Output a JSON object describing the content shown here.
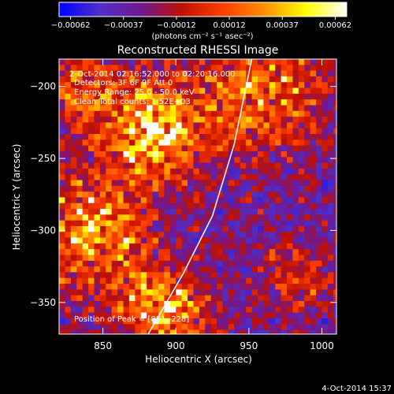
{
  "chart_data": {
    "type": "heatmap",
    "title": "Reconstructed RHESSI Image",
    "xlabel": "Heliocentric X (arcsec)",
    "ylabel": "Heliocentric Y (arcsec)",
    "xlim": [
      820,
      1010
    ],
    "ylim": [
      -372,
      -181
    ],
    "x_ticks": [
      850,
      900,
      950,
      1000
    ],
    "y_ticks": [
      -200,
      -250,
      -300,
      -350
    ],
    "x_tick_labels": [
      "850",
      "900",
      "950",
      "1000"
    ],
    "y_tick_labels": [
      "−200",
      "−250",
      "−300",
      "−350"
    ],
    "colorbar": {
      "min": -0.00062,
      "max": 0.00062,
      "tick_labels": [
        "−0.00062",
        "−0.00037",
        "−0.00012",
        "0.00012",
        "0.00037",
        "0.00062"
      ],
      "unit_label": "(photons cm⁻² s⁻¹ asec⁻²)",
      "colors": [
        "#0000ff",
        "#5030c8",
        "#701890",
        "#c01000",
        "#ff4000",
        "#ff9000",
        "#ffff00",
        "#ffffff"
      ]
    },
    "annotations": [
      "2-Oct-2014 02:16:52.000 to 02:20:16.000",
      "Detectors: 3F 6F 9F  Att 0",
      "Energy Range: 25.0 - 50.0 keV",
      "Clean     Total counts: 1.52E+03"
    ],
    "peak_label": "Position of Peak = [881,-228]",
    "peak_position": [
      881,
      -228
    ],
    "limb_curve": [
      [
        881,
        -372
      ],
      [
        905,
        -330
      ],
      [
        925,
        -290
      ],
      [
        940,
        -240
      ],
      [
        952,
        -181
      ]
    ]
  },
  "footer_timestamp": "4-Oct-2014 15:37"
}
